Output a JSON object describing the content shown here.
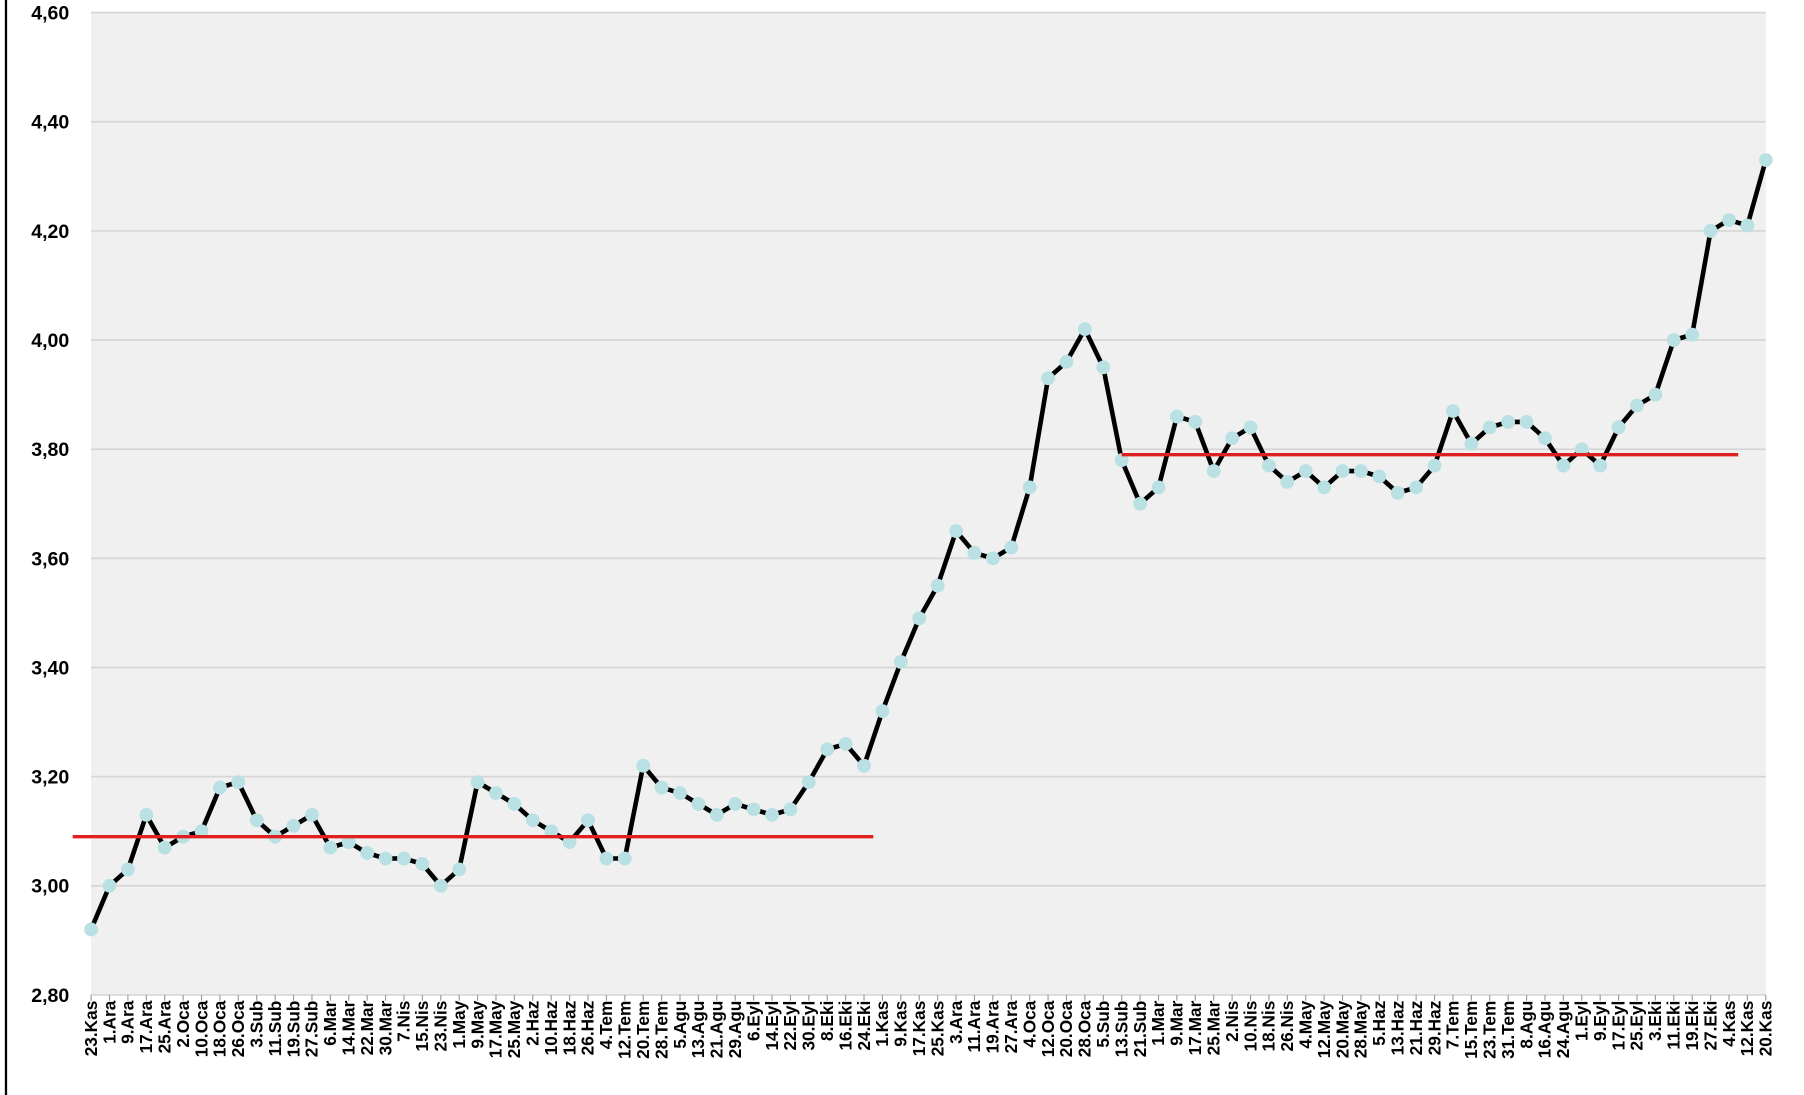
{
  "chart_data": {
    "type": "line",
    "categories": [
      "23.Kas",
      "1.Ara",
      "9.Ara",
      "17.Ara",
      "25.Ara",
      "2.Oca",
      "10.Oca",
      "18.Oca",
      "26.Oca",
      "3.Sub",
      "11.Sub",
      "19.Sub",
      "27.Sub",
      "6.Mar",
      "14.Mar",
      "22.Mar",
      "30.Mar",
      "7.Nis",
      "15.Nis",
      "23.Nis",
      "1.May",
      "9.May",
      "17.May",
      "25.May",
      "2.Haz",
      "10.Haz",
      "18.Haz",
      "26.Haz",
      "4.Tem",
      "12.Tem",
      "20.Tem",
      "28.Tem",
      "5.Agu",
      "13.Agu",
      "21.Agu",
      "29.Agu",
      "6.Eyl",
      "14.Eyl",
      "22.Eyl",
      "30.Eyl",
      "8.Eki",
      "16.Eki",
      "24.Eki",
      "1.Kas",
      "9.Kas",
      "17.Kas",
      "25.Kas",
      "3.Ara",
      "11.Ara",
      "19.Ara",
      "27.Ara",
      "4.Oca",
      "12.Oca",
      "20.Oca",
      "28.Oca",
      "5.Sub",
      "13.Sub",
      "21.Sub",
      "1.Mar",
      "9.Mar",
      "17.Mar",
      "25.Mar",
      "2.Nis",
      "10.Nis",
      "18.Nis",
      "26.Nis",
      "4.May",
      "12.May",
      "20.May",
      "28.May",
      "5.Haz",
      "13.Haz",
      "21.Haz",
      "29.Haz",
      "7.Tem",
      "15.Tem",
      "23.Tem",
      "31.Tem",
      "8.Agu",
      "16.Agu",
      "24.Agu",
      "1.Eyl",
      "9.Eyl",
      "17.Eyl",
      "25.Eyl",
      "3.Eki",
      "11.Eki",
      "19.Eki",
      "27.Eki",
      "4.Kas",
      "12.Kas",
      "20.Kas"
    ],
    "series": [
      {
        "color": "#000000",
        "marker_color": "#b9e0e3",
        "values": [
          2.92,
          3.0,
          3.03,
          3.13,
          3.07,
          3.09,
          3.1,
          3.18,
          3.19,
          3.12,
          3.09,
          3.11,
          3.13,
          3.07,
          3.08,
          3.06,
          3.05,
          3.05,
          3.04,
          3.0,
          3.03,
          3.19,
          3.17,
          3.15,
          3.12,
          3.1,
          3.08,
          3.12,
          3.05,
          3.05,
          3.22,
          3.18,
          3.17,
          3.15,
          3.13,
          3.15,
          3.14,
          3.13,
          3.14,
          3.19,
          3.25,
          3.26,
          3.22,
          3.32,
          3.41,
          3.49,
          3.55,
          3.65,
          3.61,
          3.6,
          3.62,
          3.73,
          3.93,
          3.96,
          4.02,
          3.95,
          3.78,
          3.7,
          3.73,
          3.86,
          3.85,
          3.76,
          3.82,
          3.84,
          3.77,
          3.74,
          3.76,
          3.73,
          3.76,
          3.76,
          3.75,
          3.72,
          3.73,
          3.77,
          3.87,
          3.81,
          3.84,
          3.85,
          3.85,
          3.82,
          3.77,
          3.8,
          3.77,
          3.84,
          3.88,
          3.9,
          4.0,
          4.01,
          4.2,
          4.22,
          4.21,
          4.33
        ]
      }
    ],
    "reference_lines": [
      {
        "value": 3.09,
        "color": "#e02020",
        "from": "23.Kas",
        "to": "24.Eki"
      },
      {
        "value": 3.79,
        "color": "#e02020",
        "from": "21.Sub",
        "to": "4.Kas"
      }
    ],
    "ylim": [
      2.8,
      4.6
    ],
    "yticks": [
      {
        "value": 2.8,
        "label": "2,80"
      },
      {
        "value": 3.0,
        "label": "3,00"
      },
      {
        "value": 3.2,
        "label": "3,20"
      },
      {
        "value": 3.4,
        "label": "3,40"
      },
      {
        "value": 3.6,
        "label": "3,60"
      },
      {
        "value": 3.8,
        "label": "3,80"
      },
      {
        "value": 4.0,
        "label": "4,00"
      },
      {
        "value": 4.2,
        "label": "4,20"
      },
      {
        "value": 4.4,
        "label": "4,40"
      },
      {
        "value": 4.6,
        "label": "4,60"
      }
    ],
    "grid": true,
    "background": "#f0f0f0"
  }
}
